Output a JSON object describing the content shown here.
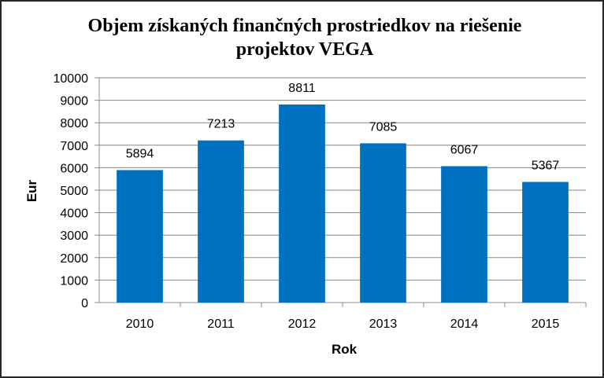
{
  "chart_data": {
    "type": "bar",
    "title_line1": "Objem získaných finančných prostriedkov na riešenie",
    "title_line2": "projektov VEGA",
    "xlabel": "Rok",
    "ylabel": "Eur",
    "categories": [
      "2010",
      "2011",
      "2012",
      "2013",
      "2014",
      "2015"
    ],
    "values": [
      5894,
      7213,
      8811,
      7085,
      6067,
      5367
    ],
    "data_labels": [
      "5894",
      "7213",
      "8811",
      "7085",
      "6067",
      "5367"
    ],
    "ylim": [
      0,
      10000
    ],
    "yticks": [
      "0",
      "1000",
      "2000",
      "3000",
      "4000",
      "5000",
      "6000",
      "7000",
      "8000",
      "9000",
      "10000"
    ],
    "grid": true,
    "legend": "none",
    "bar_color": "#0070C0"
  }
}
